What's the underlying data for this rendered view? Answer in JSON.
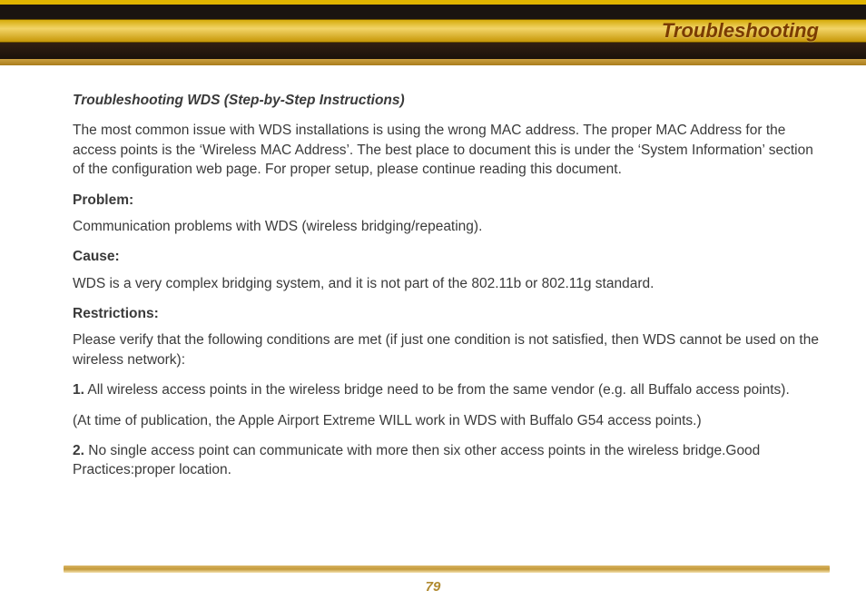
{
  "header": {
    "title": "Troubleshooting"
  },
  "section": {
    "title": "Troubleshooting WDS (Step-by-Step Instructions)",
    "intro": "The most common issue with WDS installations is using the wrong MAC address. The proper MAC Address for the access points is the ‘Wireless MAC Address’. The best place to document this is under the ‘System Information’ section of the configuration web page. For proper setup, please continue reading this document.",
    "problem_label": "Problem:",
    "problem_text": "Communication problems with WDS (wireless bridging/repeating).",
    "cause_label": "Cause:",
    "cause_text": "WDS is a very complex bridging system, and it is not part of the 802.11b or 802.11g standard.",
    "restrictions_label": "Restrictions:",
    "restrictions_intro": "Please verify that the following conditions are met (if just one condition is not satisfied, then WDS cannot be used on the wireless network):",
    "item1_num": "1.",
    "item1_text": " All wireless access points in the wireless bridge need to be from the same vendor (e.g. all Buffalo access points).",
    "item1_note": "(At time of publication, the Apple Airport Extreme WILL work in WDS with Buffalo G54 access points.)",
    "item2_num": "2.",
    "item2_text": "  No single access point can communicate with more then six other access points in the wireless bridge.Good Practices:proper location."
  },
  "page_number": "79",
  "colors": {
    "header_text": "#7a3b00",
    "body_text": "#3a3a3a",
    "page_number": "#b08a30"
  }
}
